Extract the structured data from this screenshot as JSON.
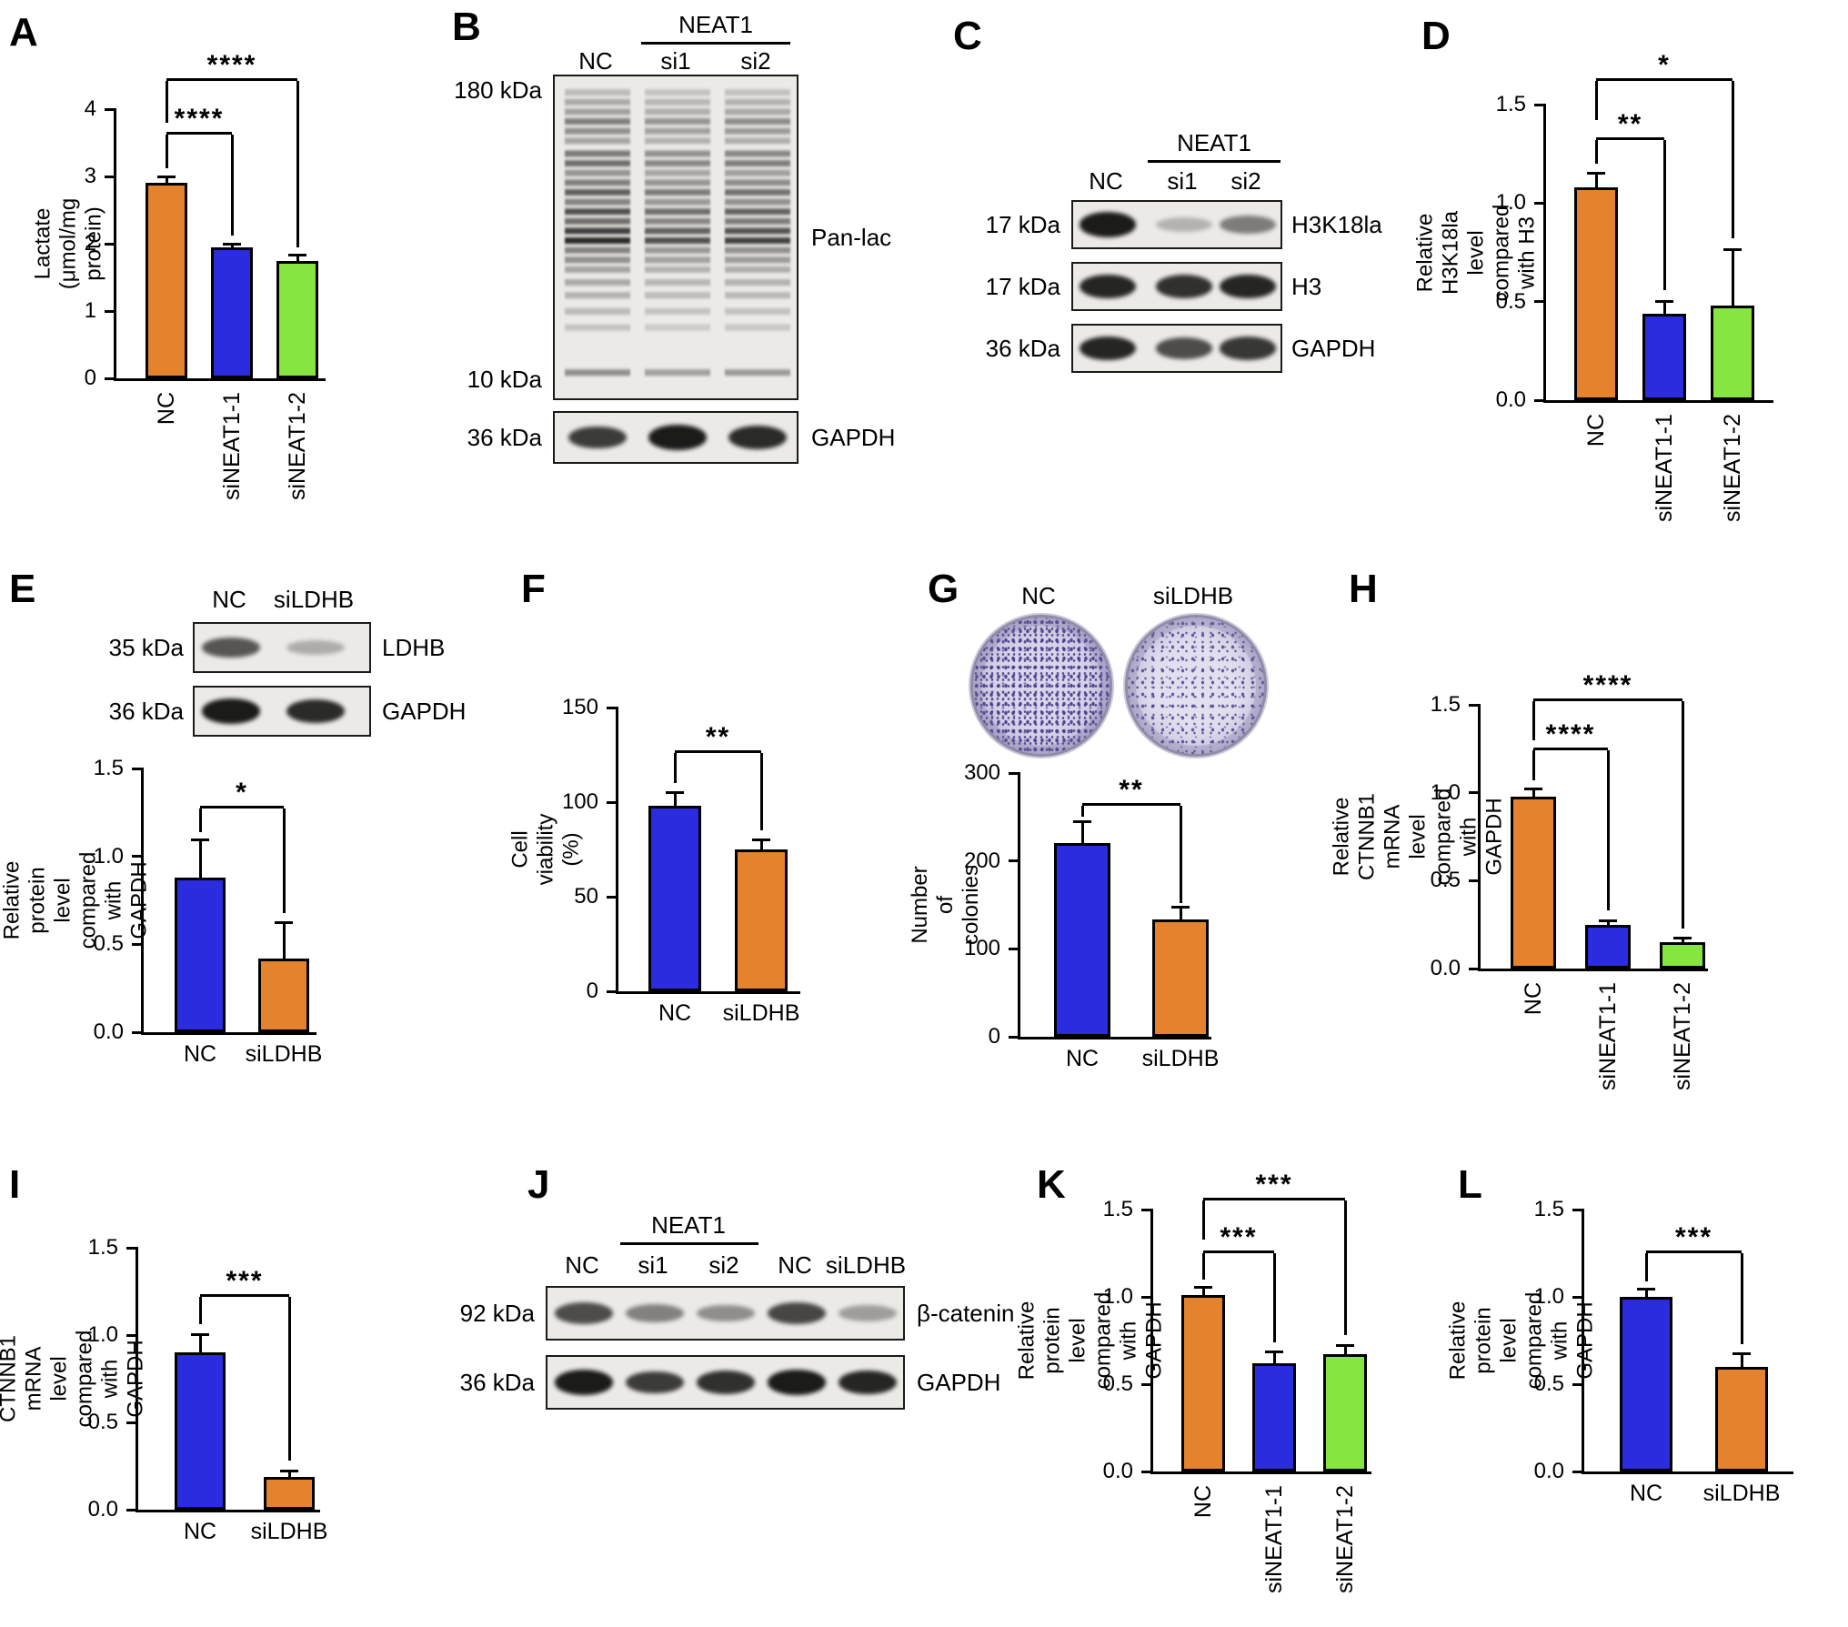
{
  "panels": {
    "A": "A",
    "B": "B",
    "C": "C",
    "D": "D",
    "E": "E",
    "F": "F",
    "G": "G",
    "H": "H",
    "I": "I",
    "J": "J",
    "K": "K",
    "L": "L"
  },
  "colors": {
    "orange": "#E5822D",
    "blue": "#2B2BDF",
    "green": "#87E542",
    "axis": "#000000"
  },
  "colony_assay": {
    "labels": [
      "NC",
      "siLDHB"
    ]
  },
  "blots": {
    "B": {
      "header": "NEAT1",
      "lanes": [
        "NC",
        "si1",
        "si2"
      ],
      "main": {
        "marker_top": "180 kDa",
        "marker_bottom": "10 kDa",
        "protein": "Pan-lac",
        "lane_scale": [
          1,
          0.8,
          0.88
        ],
        "bands": [
          [
            5,
            0.22
          ],
          [
            8,
            0.3
          ],
          [
            11,
            0.34
          ],
          [
            14,
            0.5
          ],
          [
            17,
            0.42
          ],
          [
            20,
            0.32
          ],
          [
            24,
            0.52
          ],
          [
            27,
            0.58
          ],
          [
            30,
            0.4
          ],
          [
            33,
            0.5
          ],
          [
            36,
            0.65
          ],
          [
            39,
            0.48
          ],
          [
            42,
            0.72
          ],
          [
            45,
            0.58
          ],
          [
            48,
            0.8
          ],
          [
            51,
            0.9
          ],
          [
            54,
            0.48
          ],
          [
            57,
            0.42
          ],
          [
            60,
            0.32
          ],
          [
            64,
            0.3
          ],
          [
            68,
            0.26
          ],
          [
            73,
            0.22
          ],
          [
            78,
            0.18
          ],
          [
            92,
            0.42
          ]
        ]
      },
      "gapdh": {
        "marker": "36 kDa",
        "protein": "GAPDH",
        "bands": [
          0.8,
          0.95,
          0.88
        ]
      }
    },
    "C": {
      "header": "NEAT1",
      "lanes": [
        "NC",
        "si1",
        "si2"
      ],
      "rows": [
        {
          "marker": "17 kDa",
          "protein": "H3K18la",
          "bands": [
            0.95,
            0.25,
            0.5
          ]
        },
        {
          "marker": "17 kDa",
          "protein": "H3",
          "bands": [
            0.9,
            0.85,
            0.9
          ]
        },
        {
          "marker": "36 kDa",
          "protein": "GAPDH",
          "bands": [
            0.9,
            0.72,
            0.82
          ]
        }
      ]
    },
    "E": {
      "lanes": [
        "NC",
        "siLDHB"
      ],
      "rows": [
        {
          "marker": "35 kDa",
          "protein": "LDHB",
          "bands": [
            0.68,
            0.28
          ]
        },
        {
          "marker": "36 kDa",
          "protein": "GAPDH",
          "bands": [
            0.95,
            0.88
          ]
        }
      ]
    },
    "J": {
      "header": "NEAT1",
      "lanes": [
        "NC",
        "si1",
        "si2",
        "NC",
        "siLDHB"
      ],
      "rows": [
        {
          "marker": "92 kDa",
          "protein": "β-catenin",
          "bands": [
            0.72,
            0.48,
            0.42,
            0.75,
            0.35
          ]
        },
        {
          "marker": "36 kDa",
          "protein": "GAPDH",
          "bands": [
            0.95,
            0.8,
            0.85,
            0.95,
            0.9
          ]
        }
      ]
    }
  },
  "chart_data": [
    {
      "panel": "A",
      "type": "bar",
      "ylabel": [
        "Lactate (μmol/mg protein)"
      ],
      "ylim": [
        0,
        4
      ],
      "yticks": [
        "0",
        "1",
        "2",
        "3",
        "4"
      ],
      "categories": [
        "NC",
        "siNEAT1-1",
        "siNEAT1-2"
      ],
      "values": [
        2.9,
        1.95,
        1.75
      ],
      "errors": [
        0.08,
        0.04,
        0.08
      ],
      "bar_colors": [
        "orange",
        "blue",
        "green"
      ],
      "label_rotate": true,
      "grid": false,
      "sig": [
        {
          "from": 0,
          "to": 1,
          "label": "****",
          "y": 3.62,
          "stop_from": 3.12,
          "stop_to": 2.12
        },
        {
          "from": 0,
          "to": 2,
          "label": "****",
          "y": 4.42,
          "stop_from": 3.8,
          "stop_to": 1.95
        }
      ]
    },
    {
      "panel": "D",
      "type": "bar",
      "ylabel": [
        "Relative H3K18la level",
        "compared with H3"
      ],
      "ylim": [
        0,
        1.5
      ],
      "yticks": [
        "0.0",
        "0.5",
        "1.0",
        "1.5"
      ],
      "categories": [
        "NC",
        "siNEAT1-1",
        "siNEAT1-2"
      ],
      "values": [
        1.08,
        0.44,
        0.48
      ],
      "errors": [
        0.07,
        0.06,
        0.28
      ],
      "bar_colors": [
        "orange",
        "blue",
        "green"
      ],
      "label_rotate": true,
      "grid": false,
      "sig": [
        {
          "from": 0,
          "to": 1,
          "label": "**",
          "y": 1.32,
          "stop_from": 1.2,
          "stop_to": 0.56
        },
        {
          "from": 0,
          "to": 2,
          "label": "*",
          "y": 1.62,
          "stop_from": 1.42,
          "stop_to": 0.82
        }
      ]
    },
    {
      "panel": "E",
      "type": "bar",
      "ylabel": [
        "Relative protein level",
        "compared with GAPDH"
      ],
      "ylim": [
        0,
        1.5
      ],
      "yticks": [
        "0.0",
        "0.5",
        "1.0",
        "1.5"
      ],
      "categories": [
        "NC",
        "siLDHB"
      ],
      "values": [
        0.88,
        0.42
      ],
      "errors": [
        0.21,
        0.2
      ],
      "bar_colors": [
        "blue",
        "orange"
      ],
      "label_rotate": false,
      "grid": false,
      "sig": [
        {
          "from": 0,
          "to": 1,
          "label": "*",
          "y": 1.27,
          "stop_from": 1.14,
          "stop_to": 0.68
        }
      ]
    },
    {
      "panel": "F",
      "type": "bar",
      "ylabel": [
        "Cell viability (%)"
      ],
      "ylim": [
        0,
        150
      ],
      "yticks": [
        "0",
        "50",
        "100",
        "150"
      ],
      "categories": [
        "NC",
        "siLDHB"
      ],
      "values": [
        98,
        75
      ],
      "errors": [
        7,
        5
      ],
      "bar_colors": [
        "blue",
        "orange"
      ],
      "label_rotate": false,
      "grid": false,
      "sig": [
        {
          "from": 0,
          "to": 1,
          "label": "**",
          "y": 126,
          "stop_from": 110,
          "stop_to": 85
        }
      ]
    },
    {
      "panel": "G",
      "type": "bar",
      "ylabel": [
        "Number of colonies"
      ],
      "ylim": [
        0,
        300
      ],
      "yticks": [
        "0",
        "100",
        "200",
        "300"
      ],
      "categories": [
        "NC",
        "siLDHB"
      ],
      "values": [
        220,
        133
      ],
      "errors": [
        24,
        14
      ],
      "bar_colors": [
        "blue",
        "orange"
      ],
      "label_rotate": false,
      "grid": false,
      "sig": [
        {
          "from": 0,
          "to": 1,
          "label": "**",
          "y": 263,
          "stop_from": 250,
          "stop_to": 152
        }
      ]
    },
    {
      "panel": "H",
      "type": "bar",
      "ylabel": [
        "Relative CTNNB1 mRNA level",
        "compared with GAPDH"
      ],
      "ylim": [
        0,
        1.5
      ],
      "yticks": [
        "0.0",
        "0.5",
        "1.0",
        "1.5"
      ],
      "categories": [
        "NC",
        "siNEAT1-1",
        "siNEAT1-2"
      ],
      "values": [
        0.98,
        0.25,
        0.15
      ],
      "errors": [
        0.04,
        0.02,
        0.02
      ],
      "bar_colors": [
        "orange",
        "blue",
        "green"
      ],
      "label_rotate": true,
      "grid": false,
      "sig": [
        {
          "from": 0,
          "to": 1,
          "label": "****",
          "y": 1.24,
          "stop_from": 1.07,
          "stop_to": 0.33
        },
        {
          "from": 0,
          "to": 2,
          "label": "****",
          "y": 1.52,
          "stop_from": 1.3,
          "stop_to": 0.23
        }
      ]
    },
    {
      "panel": "I",
      "type": "bar",
      "ylabel": [
        "Relative CTNNB1 mRNA level",
        "compared with GAPDH"
      ],
      "ylim": [
        0,
        1.5
      ],
      "yticks": [
        "0.0",
        "0.5",
        "1.0",
        "1.5"
      ],
      "categories": [
        "NC",
        "siLDHB"
      ],
      "values": [
        0.9,
        0.19
      ],
      "errors": [
        0.1,
        0.03
      ],
      "bar_colors": [
        "blue",
        "orange"
      ],
      "label_rotate": false,
      "grid": false,
      "sig": [
        {
          "from": 0,
          "to": 1,
          "label": "***",
          "y": 1.22,
          "stop_from": 1.06,
          "stop_to": 0.28
        }
      ]
    },
    {
      "panel": "K",
      "type": "bar",
      "ylabel": [
        "Relative protein level",
        "compared with GAPDH"
      ],
      "ylim": [
        0,
        1.5
      ],
      "yticks": [
        "0.0",
        "0.5",
        "1.0",
        "1.5"
      ],
      "categories": [
        "NC",
        "siNEAT1-1",
        "siNEAT1-2"
      ],
      "values": [
        1.01,
        0.62,
        0.67
      ],
      "errors": [
        0.04,
        0.06,
        0.05
      ],
      "bar_colors": [
        "orange",
        "blue",
        "green"
      ],
      "label_rotate": true,
      "grid": false,
      "sig": [
        {
          "from": 0,
          "to": 1,
          "label": "***",
          "y": 1.25,
          "stop_from": 1.1,
          "stop_to": 0.74
        },
        {
          "from": 0,
          "to": 2,
          "label": "***",
          "y": 1.55,
          "stop_from": 1.33,
          "stop_to": 0.78
        }
      ]
    },
    {
      "panel": "L",
      "type": "bar",
      "ylabel": [
        "Relative protein level",
        "compared with GAPDH"
      ],
      "ylim": [
        0,
        1.5
      ],
      "yticks": [
        "0.0",
        "0.5",
        "1.0",
        "1.5"
      ],
      "categories": [
        "NC",
        "siLDHB"
      ],
      "values": [
        1.0,
        0.6
      ],
      "errors": [
        0.04,
        0.07
      ],
      "bar_colors": [
        "blue",
        "orange"
      ],
      "label_rotate": false,
      "grid": false,
      "sig": [
        {
          "from": 0,
          "to": 1,
          "label": "***",
          "y": 1.25,
          "stop_from": 1.09,
          "stop_to": 0.73
        }
      ]
    }
  ]
}
